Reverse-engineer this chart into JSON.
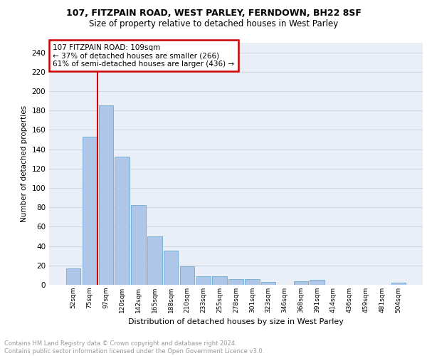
{
  "title_line1": "107, FITZPAIN ROAD, WEST PARLEY, FERNDOWN, BH22 8SF",
  "title_line2": "Size of property relative to detached houses in West Parley",
  "xlabel": "Distribution of detached houses by size in West Parley",
  "ylabel": "Number of detached properties",
  "footnote": "Contains HM Land Registry data © Crown copyright and database right 2024.\nContains public sector information licensed under the Open Government Licence v3.0.",
  "categories": [
    "52sqm",
    "75sqm",
    "97sqm",
    "120sqm",
    "142sqm",
    "165sqm",
    "188sqm",
    "210sqm",
    "233sqm",
    "255sqm",
    "278sqm",
    "301sqm",
    "323sqm",
    "346sqm",
    "368sqm",
    "391sqm",
    "414sqm",
    "436sqm",
    "459sqm",
    "481sqm",
    "504sqm"
  ],
  "values": [
    17,
    153,
    185,
    132,
    82,
    50,
    35,
    19,
    9,
    9,
    6,
    6,
    3,
    0,
    4,
    5,
    0,
    0,
    0,
    0,
    2
  ],
  "bar_color": "#aec6e8",
  "bar_edge_color": "#6baad0",
  "vline_x": 1.5,
  "vline_color": "#cc0000",
  "annotation_text": "107 FITZPAIN ROAD: 109sqm\n← 37% of detached houses are smaller (266)\n61% of semi-detached houses are larger (436) →",
  "annotation_box_color": "#ffffff",
  "annotation_box_edge": "#cc0000",
  "ylim": [
    0,
    250
  ],
  "yticks": [
    0,
    20,
    40,
    60,
    80,
    100,
    120,
    140,
    160,
    180,
    200,
    220,
    240
  ],
  "grid_color": "#d0d8e8",
  "background_color": "#eaeff7"
}
